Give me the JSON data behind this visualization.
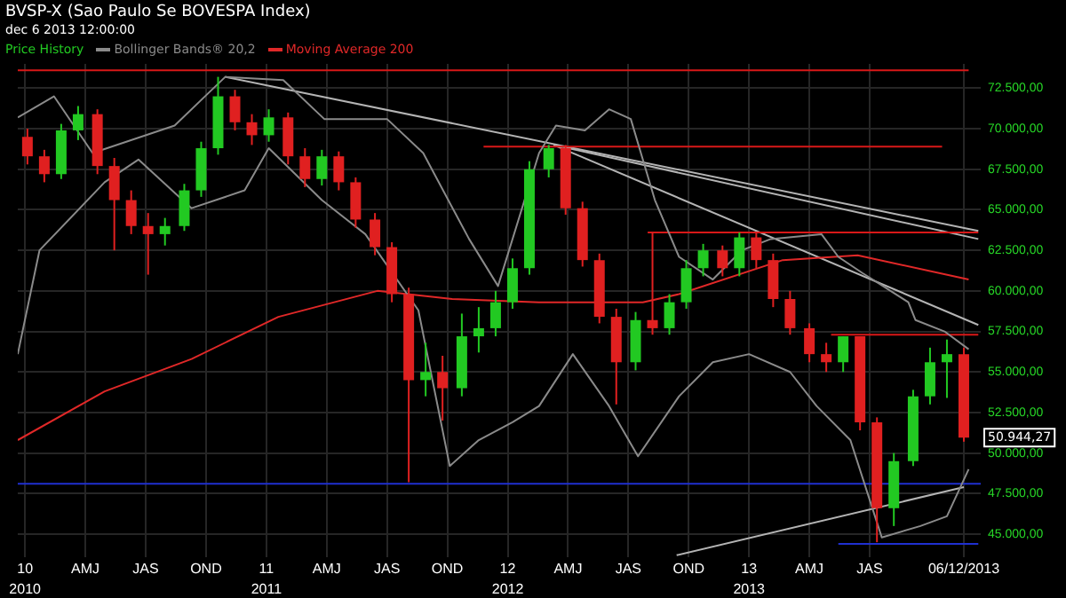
{
  "chart_data": {
    "type": "candlestick",
    "title": "BVSP-X (Sao Paulo Se BOVESPA Index)",
    "subtitle": "dec 6 2013 12:00:00",
    "xlim": [
      2009.97,
      2013.96
    ],
    "ylim": [
      43600,
      74000
    ],
    "xticks": [
      {
        "value": 2010,
        "label": "10"
      },
      {
        "value": 2010.25,
        "label": "AMJ"
      },
      {
        "value": 2010.5,
        "label": "JAS"
      },
      {
        "value": 2010.75,
        "label": "OND"
      },
      {
        "value": 2011,
        "label": "11"
      },
      {
        "value": 2011.25,
        "label": "AMJ"
      },
      {
        "value": 2011.5,
        "label": "JAS"
      },
      {
        "value": 2011.75,
        "label": "OND"
      },
      {
        "value": 2012,
        "label": "12"
      },
      {
        "value": 2012.25,
        "label": "AMJ"
      },
      {
        "value": 2012.5,
        "label": "JAS"
      },
      {
        "value": 2012.75,
        "label": "OND"
      },
      {
        "value": 2013,
        "label": "13"
      },
      {
        "value": 2013.25,
        "label": "AMJ"
      },
      {
        "value": 2013.5,
        "label": "JAS"
      },
      {
        "value": 2013.89,
        "label": "06/12/2013"
      }
    ],
    "x2lim": [
      2009.97,
      2013.96
    ],
    "x2ticks": [
      {
        "value": 2010,
        "label": "2010"
      },
      {
        "value": 2011,
        "label": "2011"
      },
      {
        "value": 2012,
        "label": "2012"
      },
      {
        "value": 2013,
        "label": "2013"
      }
    ],
    "yticks": [
      {
        "value": 45000,
        "label": "45.000,00"
      },
      {
        "value": 47500,
        "label": "47.500,00"
      },
      {
        "value": 50000,
        "label": "50.000,00"
      },
      {
        "value": 52500,
        "label": "52.500,00"
      },
      {
        "value": 55000,
        "label": "55.000,00"
      },
      {
        "value": 57500,
        "label": "57.500,00"
      },
      {
        "value": 60000,
        "label": "60.000,00"
      },
      {
        "value": 62500,
        "label": "62.500,00"
      },
      {
        "value": 65000,
        "label": "65.000,00"
      },
      {
        "value": 67500,
        "label": "67.500,00"
      },
      {
        "value": 70000,
        "label": "70.000,00"
      },
      {
        "value": 72500,
        "label": "72.500,00"
      }
    ],
    "grid": true,
    "legend": "top left",
    "annotations": [
      {
        "text": "50.944,27",
        "x": 2013.89,
        "y": 50944.27
      }
    ],
    "series": [
      {
        "name": "Price History",
        "type": "candlestick",
        "color": "#22c922",
        "x": [
          2010.01,
          2010.08,
          2010.15,
          2010.22,
          2010.3,
          2010.37,
          2010.44,
          2010.51,
          2010.58,
          2010.66,
          2010.73,
          2010.8,
          2010.87,
          2010.94,
          2011.01,
          2011.09,
          2011.16,
          2011.23,
          2011.3,
          2011.37,
          2011.45,
          2011.52,
          2011.59,
          2011.66,
          2011.73,
          2011.81,
          2011.88,
          2011.95,
          2012.02,
          2012.09,
          2012.17,
          2012.24,
          2012.31,
          2012.38,
          2012.45,
          2012.53,
          2012.6,
          2012.67,
          2012.74,
          2012.81,
          2012.89,
          2012.96,
          2013.03,
          2013.1,
          2013.17,
          2013.25,
          2013.32,
          2013.39,
          2013.46,
          2013.53,
          2013.6,
          2013.68,
          2013.75,
          2013.82,
          2013.89
        ],
        "ohlc": [
          [
            69500,
            70000,
            67800,
            68300
          ],
          [
            68300,
            68700,
            66700,
            67200
          ],
          [
            67200,
            70300,
            66900,
            69900
          ],
          [
            69900,
            71400,
            69300,
            70900
          ],
          [
            70900,
            71200,
            67200,
            67700
          ],
          [
            67700,
            68200,
            62500,
            65600
          ],
          [
            65600,
            66200,
            63500,
            64000
          ],
          [
            64000,
            64800,
            61000,
            63500
          ],
          [
            63500,
            64500,
            62800,
            64000
          ],
          [
            64000,
            66600,
            63700,
            66200
          ],
          [
            66200,
            69200,
            65800,
            68800
          ],
          [
            68800,
            73200,
            68400,
            72000
          ],
          [
            72000,
            72400,
            69900,
            70400
          ],
          [
            70400,
            70900,
            69000,
            69600
          ],
          [
            69600,
            71200,
            69200,
            70700
          ],
          [
            70700,
            71000,
            67800,
            68300
          ],
          [
            68300,
            68800,
            66400,
            66900
          ],
          [
            66900,
            68700,
            66500,
            68300
          ],
          [
            68300,
            68600,
            66200,
            66700
          ],
          [
            66700,
            67000,
            63900,
            64400
          ],
          [
            64400,
            64800,
            62200,
            62700
          ],
          [
            62700,
            63000,
            59300,
            59800
          ],
          [
            59800,
            60200,
            48200,
            54500
          ],
          [
            54500,
            56800,
            53500,
            55000
          ],
          [
            55000,
            56000,
            52000,
            54000
          ],
          [
            54000,
            58600,
            53500,
            57200
          ],
          [
            57200,
            59000,
            56200,
            57700
          ],
          [
            57700,
            60000,
            57200,
            59300
          ],
          [
            59300,
            62000,
            58900,
            61400
          ],
          [
            61400,
            68000,
            61000,
            67500
          ],
          [
            67500,
            69000,
            67000,
            68800
          ],
          [
            68800,
            69000,
            64700,
            65100
          ],
          [
            65100,
            65500,
            61500,
            61900
          ],
          [
            61900,
            62300,
            58000,
            58400
          ],
          [
            58400,
            58900,
            53000,
            55600
          ],
          [
            55600,
            58700,
            55100,
            58200
          ],
          [
            58200,
            63600,
            57300,
            57700
          ],
          [
            57700,
            59800,
            57300,
            59300
          ],
          [
            59300,
            61900,
            58900,
            61400
          ],
          [
            61400,
            62900,
            60900,
            62500
          ],
          [
            62500,
            62800,
            60900,
            61400
          ],
          [
            61400,
            63600,
            60900,
            63300
          ],
          [
            63300,
            63600,
            61400,
            61900
          ],
          [
            61900,
            62300,
            59000,
            59500
          ],
          [
            59500,
            60000,
            57300,
            57700
          ],
          [
            57700,
            58000,
            55600,
            56100
          ],
          [
            56100,
            56800,
            55000,
            55600
          ],
          [
            55600,
            57200,
            55000,
            57200
          ],
          [
            57200,
            57200,
            51400,
            51900
          ],
          [
            51900,
            52200,
            44500,
            46600
          ],
          [
            46600,
            50000,
            45500,
            49500
          ],
          [
            49500,
            53900,
            49200,
            53500
          ],
          [
            53500,
            56500,
            53000,
            55600
          ],
          [
            55600,
            57000,
            53400,
            56100
          ],
          [
            56100,
            56500,
            50700,
            50944.27
          ]
        ],
        "colors": [
          "#e02020",
          "#e02020",
          "#22c922",
          "#22c922",
          "#e02020",
          "#e02020",
          "#e02020",
          "#e02020",
          "#22c922",
          "#22c922",
          "#22c922",
          "#22c922",
          "#e02020",
          "#e02020",
          "#22c922",
          "#e02020",
          "#e02020",
          "#22c922",
          "#e02020",
          "#e02020",
          "#e02020",
          "#e02020",
          "#e02020",
          "#22c922",
          "#e02020",
          "#22c922",
          "#22c922",
          "#22c922",
          "#22c922",
          "#22c922",
          "#22c922",
          "#e02020",
          "#e02020",
          "#e02020",
          "#e02020",
          "#22c922",
          "#e02020",
          "#22c922",
          "#22c922",
          "#22c922",
          "#e02020",
          "#22c922",
          "#e02020",
          "#e02020",
          "#e02020",
          "#e02020",
          "#e02020",
          "#22c922",
          "#e02020",
          "#e02020",
          "#22c922",
          "#22c922",
          "#22c922",
          "#22c922",
          "#e02020"
        ]
      },
      {
        "name": "Bollinger Bands® 20,2",
        "type": "line",
        "color": "#8a8a8a",
        "x": [
          2009.97,
          2010.12,
          2010.28,
          2010.62,
          2010.76,
          2010.83,
          2011.07,
          2011.24,
          2011.5,
          2011.65,
          2011.84,
          2011.96,
          2012.13,
          2012.2,
          2012.32,
          2012.42,
          2012.51,
          2012.61,
          2012.71,
          2012.85,
          2012.97,
          2013.09,
          2013.3,
          2013.37,
          2013.47,
          2013.66,
          2013.69,
          2013.81,
          2013.91
        ],
        "values": [
          70700,
          72000,
          68500,
          70200,
          72200,
          73200,
          73000,
          70600,
          70600,
          68500,
          63200,
          60300,
          68500,
          70200,
          69900,
          71200,
          70600,
          65600,
          62100,
          60700,
          62500,
          63200,
          63500,
          62100,
          61100,
          59300,
          58200,
          57500,
          56400
        ]
      },
      {
        "type": "line",
        "color": "#8a8a8a",
        "x": [
          2009.97,
          2010.06,
          2010.33,
          2010.47,
          2010.69,
          2010.91,
          2011.01,
          2011.23,
          2011.41,
          2011.63,
          2011.76,
          2011.88,
          2012.02,
          2012.13,
          2012.27,
          2012.42,
          2012.54,
          2012.71,
          2012.85,
          2013.0,
          2013.17,
          2013.28,
          2013.42,
          2013.55,
          2013.71,
          2013.82,
          2013.91
        ],
        "values": [
          56100,
          62500,
          66700,
          68100,
          65100,
          66200,
          68800,
          65600,
          63500,
          58800,
          49200,
          50800,
          51900,
          52900,
          56100,
          52900,
          49800,
          53500,
          55600,
          56100,
          55000,
          52900,
          50800,
          44800,
          45500,
          46100,
          49000
        ]
      },
      {
        "name": "Moving Average 200",
        "type": "line",
        "color": "#e02828",
        "x": [
          2009.97,
          2010.33,
          2010.69,
          2011.05,
          2011.46,
          2011.77,
          2012.13,
          2012.56,
          2012.71,
          2013.14,
          2013.45,
          2013.91
        ],
        "values": [
          50800,
          53800,
          55800,
          58400,
          60000,
          59500,
          59300,
          59300,
          59800,
          61900,
          62200,
          60700
        ]
      },
      {
        "type": "line",
        "color": "#d81818",
        "x": [
          2009.97,
          2013.91
        ],
        "values": [
          73600,
          73600
        ]
      },
      {
        "type": "line",
        "color": "#d81818",
        "x": [
          2011.9,
          2013.8
        ],
        "values": [
          68900,
          68900
        ]
      },
      {
        "type": "line",
        "color": "#d81818",
        "x": [
          2012.58,
          2013.95
        ],
        "values": [
          63600,
          63600
        ]
      },
      {
        "type": "line",
        "color": "#d81818",
        "x": [
          2013.34,
          2013.95
        ],
        "values": [
          57300,
          57300
        ]
      },
      {
        "type": "line",
        "color": "#1f2fd0",
        "x": [
          2009.97,
          2013.96
        ],
        "values": [
          48100,
          48100
        ]
      },
      {
        "type": "line",
        "color": "#1f2fd0",
        "x": [
          2013.37,
          2013.95
        ],
        "values": [
          44400,
          44400
        ]
      },
      {
        "type": "line",
        "color": "#b4b4b4",
        "x": [
          2010.83,
          2013.95
        ],
        "values": [
          73200,
          63700
        ]
      },
      {
        "type": "line",
        "color": "#b4b4b4",
        "x": [
          2012.19,
          2013.95
        ],
        "values": [
          69000,
          63200
        ]
      },
      {
        "type": "line",
        "color": "#b4b4b4",
        "x": [
          2012.19,
          2013.95
        ],
        "values": [
          69000,
          57900
        ]
      },
      {
        "type": "line",
        "color": "#b4b4b4",
        "x": [
          2012.7,
          2013.89
        ],
        "values": [
          43700,
          47900
        ]
      }
    ]
  }
}
